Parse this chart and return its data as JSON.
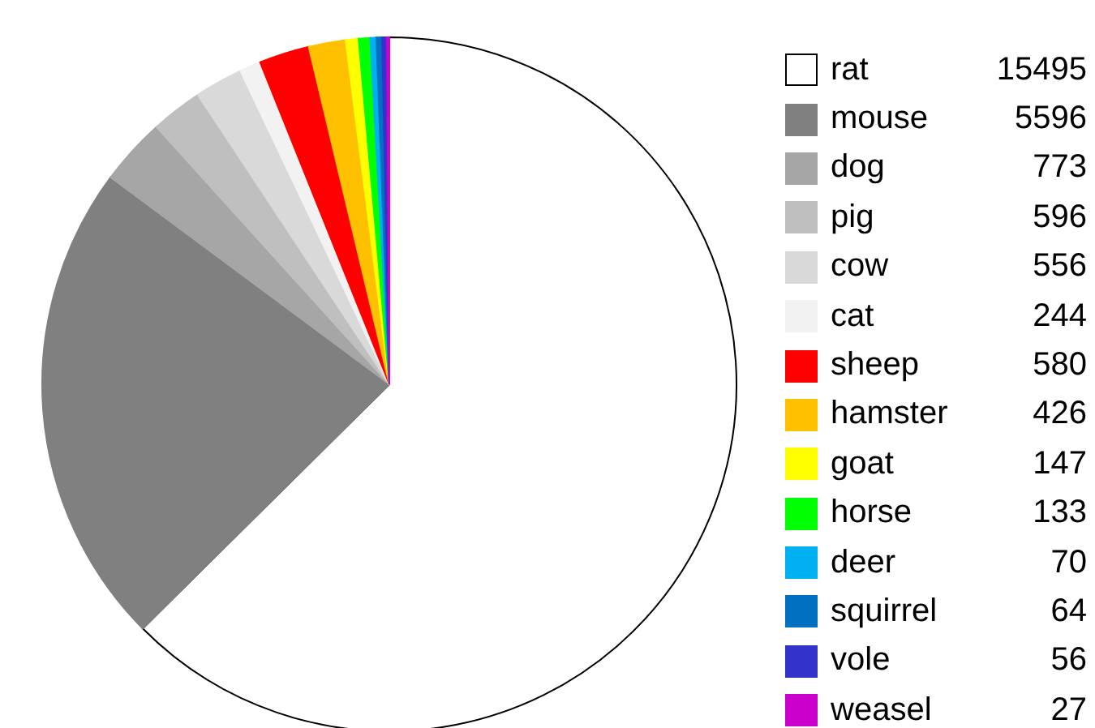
{
  "chart_data": {
    "type": "pie",
    "categories": [
      "rat",
      "mouse",
      "dog",
      "pig",
      "cow",
      "cat",
      "sheep",
      "hamster",
      "goat",
      "horse",
      "deer",
      "squirrel",
      "vole",
      "weasel"
    ],
    "values": [
      15495,
      5596,
      773,
      596,
      556,
      244,
      580,
      426,
      147,
      133,
      70,
      64,
      56,
      27
    ],
    "colors": [
      "#ffffff",
      "#808080",
      "#a6a6a6",
      "#bfbfbf",
      "#d9d9d9",
      "#f2f2f2",
      "#ff0000",
      "#ffc000",
      "#ffff00",
      "#00ff00",
      "#00b0f0",
      "#0070c0",
      "#3333cc",
      "#cc00cc"
    ],
    "legend": "right",
    "data_labels": true
  }
}
